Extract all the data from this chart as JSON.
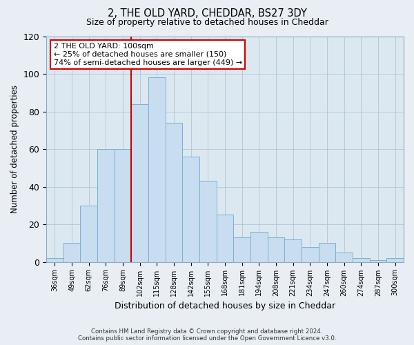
{
  "title": "2, THE OLD YARD, CHEDDAR, BS27 3DY",
  "subtitle": "Size of property relative to detached houses in Cheddar",
  "xlabel": "Distribution of detached houses by size in Cheddar",
  "ylabel": "Number of detached properties",
  "bar_color": "#c8ddef",
  "bar_edge_color": "#7ab0d4",
  "categories": [
    "36sqm",
    "49sqm",
    "62sqm",
    "76sqm",
    "89sqm",
    "102sqm",
    "115sqm",
    "128sqm",
    "142sqm",
    "155sqm",
    "168sqm",
    "181sqm",
    "194sqm",
    "208sqm",
    "221sqm",
    "234sqm",
    "247sqm",
    "260sqm",
    "274sqm",
    "287sqm",
    "300sqm"
  ],
  "values": [
    2,
    10,
    30,
    60,
    60,
    84,
    98,
    74,
    56,
    43,
    25,
    13,
    16,
    13,
    12,
    8,
    10,
    5,
    2,
    1,
    2
  ],
  "ylim": [
    0,
    120
  ],
  "yticks": [
    0,
    20,
    40,
    60,
    80,
    100,
    120
  ],
  "vline_x_index": 5,
  "vline_color": "#cc0000",
  "annotation_text": "2 THE OLD YARD: 100sqm\n← 25% of detached houses are smaller (150)\n74% of semi-detached houses are larger (449) →",
  "annotation_box_color": "#ffffff",
  "annotation_box_edge": "#cc0000",
  "footer_line1": "Contains HM Land Registry data © Crown copyright and database right 2024.",
  "footer_line2": "Contains public sector information licensed under the Open Government Licence v3.0.",
  "bg_color": "#e8eef4",
  "plot_bg_color": "#dce8f0"
}
